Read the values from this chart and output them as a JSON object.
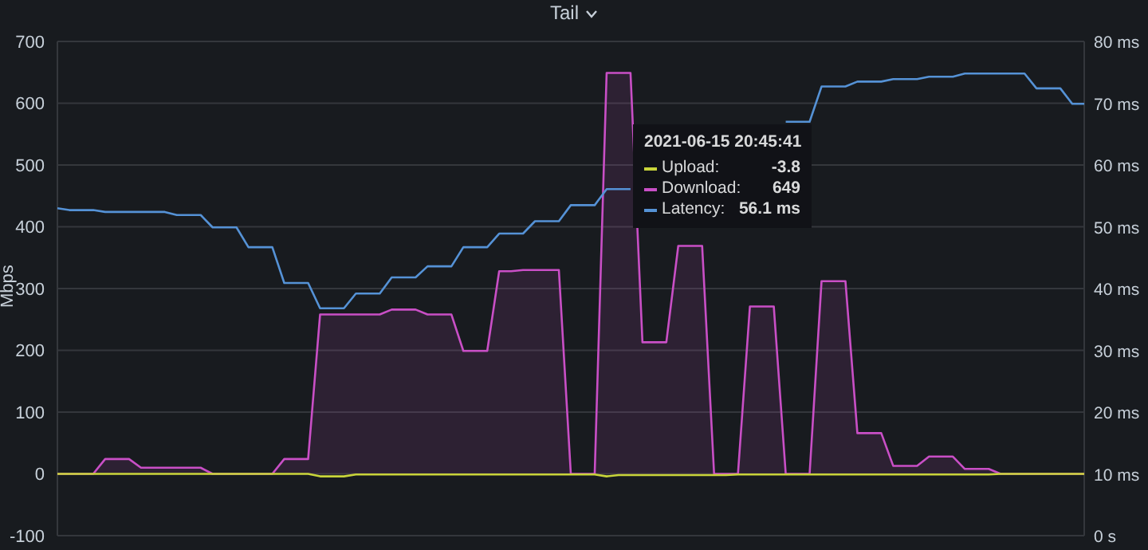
{
  "chart_data": {
    "type": "line",
    "title": "Tail",
    "ylabel": "Mbps",
    "categories": [
      null,
      null,
      null,
      null,
      null,
      null,
      null,
      null,
      null,
      null,
      null,
      null,
      null,
      null,
      null,
      null,
      null,
      null,
      null,
      null,
      null,
      null,
      null,
      null,
      null,
      null,
      null,
      null,
      null,
      null,
      null,
      null,
      null,
      null,
      null,
      null,
      null,
      null,
      null,
      null,
      null,
      null,
      null,
      null,
      null,
      null,
      null,
      null,
      null,
      null,
      null,
      null,
      null,
      null,
      null,
      null,
      null,
      null,
      null,
      null,
      null,
      null,
      null,
      null,
      null,
      null,
      null,
      null,
      null,
      null,
      null,
      null,
      null,
      null,
      null,
      null,
      null,
      null,
      null,
      null,
      null,
      null,
      null,
      null,
      null,
      null,
      null
    ],
    "series": [
      {
        "name": "Upload:",
        "color": "#c9d43a",
        "values": [
          0,
          0,
          0,
          0,
          0,
          0,
          0,
          0,
          0,
          0,
          0,
          0,
          0,
          0,
          0,
          0,
          0,
          0,
          0,
          0,
          0,
          0,
          -4,
          -4,
          -4,
          -1,
          -1,
          -1,
          -1,
          -1,
          -1,
          -1,
          -1,
          -1,
          -1,
          -1,
          -1,
          -1,
          -1,
          -1,
          -1,
          -1,
          -1,
          -1,
          -1,
          -1,
          -4,
          -2,
          -2,
          -2,
          -2,
          -2,
          -2,
          -2,
          -2,
          -2,
          -2,
          -1,
          -1,
          -1,
          -1,
          -1,
          -1,
          -1,
          -1,
          -1,
          -1,
          -1,
          -1,
          -1,
          -1,
          -1,
          -1,
          -1,
          -1,
          -1,
          -1,
          -1,
          -1,
          0,
          0,
          0,
          0,
          0,
          0,
          0,
          0
        ]
      },
      {
        "name": "Download:",
        "type": "area",
        "color": "#c94fc6",
        "values": [
          0,
          0,
          0,
          0,
          24,
          24,
          24,
          10,
          10,
          10,
          10,
          10,
          10,
          0,
          0,
          0,
          0,
          0,
          0,
          24,
          24,
          24,
          258,
          258,
          258,
          258,
          258,
          258,
          266,
          266,
          266,
          258,
          258,
          258,
          199,
          199,
          199,
          328,
          328,
          330,
          330,
          330,
          330,
          0,
          0,
          0,
          649,
          649,
          649,
          213,
          213,
          213,
          369,
          369,
          369,
          0,
          0,
          0,
          271,
          271,
          271,
          0,
          0,
          0,
          312,
          312,
          312,
          66,
          66,
          66,
          13,
          13,
          13,
          28,
          28,
          28,
          8,
          8,
          8,
          0,
          0,
          0,
          0,
          0,
          0,
          0,
          0
        ]
      },
      {
        "name": "Latency:",
        "color": "#5592d6",
        "axis": "y2",
        "values": [
          53.0,
          52.7,
          52.7,
          52.7,
          52.4,
          52.4,
          52.4,
          52.4,
          52.4,
          52.4,
          51.9,
          51.9,
          51.9,
          49.9,
          49.9,
          49.9,
          46.7,
          46.7,
          46.7,
          40.9,
          40.9,
          40.9,
          36.8,
          36.8,
          36.8,
          39.2,
          39.2,
          39.2,
          41.8,
          41.8,
          41.8,
          43.6,
          43.6,
          43.6,
          46.7,
          46.7,
          46.7,
          48.9,
          48.9,
          48.9,
          50.9,
          50.9,
          50.9,
          53.5,
          53.5,
          53.5,
          56.1,
          56.1,
          56.1,
          null,
          null,
          null,
          null,
          null,
          null,
          null,
          null,
          null,
          null,
          null,
          null,
          67.0,
          67.0,
          67.0,
          72.7,
          72.7,
          72.7,
          73.5,
          73.5,
          73.5,
          73.9,
          73.9,
          73.9,
          74.3,
          74.3,
          74.3,
          74.8,
          74.8,
          74.8,
          74.8,
          74.8,
          74.8,
          72.4,
          72.4,
          72.4,
          69.9,
          69.9
        ]
      }
    ],
    "ylim": [
      -100,
      700
    ],
    "yticks": [
      -100,
      0,
      100,
      200,
      300,
      400,
      500,
      600,
      700
    ],
    "y2lim": [
      0,
      80
    ],
    "y2ticks": [
      {
        "value": 0,
        "label": "0 s"
      },
      {
        "value": 10,
        "label": "10 ms"
      },
      {
        "value": 20,
        "label": "20 ms"
      },
      {
        "value": 30,
        "label": "30 ms"
      },
      {
        "value": 40,
        "label": "40 ms"
      },
      {
        "value": 50,
        "label": "50 ms"
      },
      {
        "value": 60,
        "label": "60 ms"
      },
      {
        "value": 70,
        "label": "70 ms"
      },
      {
        "value": 80,
        "label": "80 ms"
      }
    ],
    "grid": true,
    "legend": "top",
    "tick_labels": "y",
    "marker": "none",
    "line_style": "solid",
    "annotations": [
      "2021-06-15 20:45:41",
      "-3.8",
      "649",
      "56.1 ms"
    ]
  }
}
